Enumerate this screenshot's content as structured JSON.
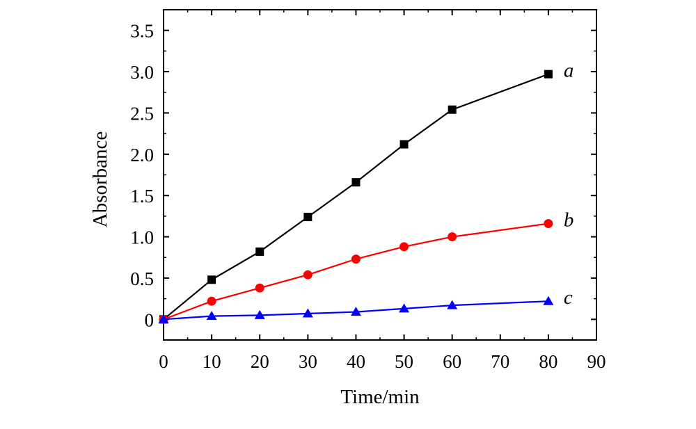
{
  "chart_data": {
    "type": "line",
    "title": "",
    "xlabel": "Time/min",
    "ylabel": "Absorbance",
    "xlim": [
      0,
      90
    ],
    "ylim": [
      -0.25,
      3.75
    ],
    "xticks": [
      0,
      10,
      20,
      30,
      40,
      50,
      60,
      70,
      80,
      90
    ],
    "xtick_labels": [
      "0",
      "10",
      "20",
      "30",
      "40",
      "50",
      "60",
      "70",
      "80",
      "90"
    ],
    "yticks": [
      0,
      0.5,
      1.0,
      1.5,
      2.0,
      2.5,
      3.0,
      3.5
    ],
    "ytick_labels": [
      "0",
      "0.5",
      "1.0",
      "1.5",
      "2.0",
      "2.5",
      "3.0",
      "3.5"
    ],
    "grid": false,
    "legend": "inline labels at line ends",
    "series": [
      {
        "name": "a",
        "color": "#000000",
        "marker": "square",
        "x": [
          0,
          10,
          20,
          30,
          40,
          50,
          60,
          80
        ],
        "values": [
          0.0,
          0.48,
          0.82,
          1.24,
          1.66,
          2.12,
          2.54,
          2.97
        ]
      },
      {
        "name": "b",
        "color": "#ff0000",
        "marker": "circle",
        "x": [
          0,
          10,
          20,
          30,
          40,
          50,
          60,
          80
        ],
        "values": [
          0.0,
          0.22,
          0.38,
          0.54,
          0.73,
          0.88,
          1.0,
          1.16
        ]
      },
      {
        "name": "c",
        "color": "#0000ff",
        "marker": "triangle",
        "x": [
          0,
          10,
          20,
          30,
          40,
          50,
          60,
          80
        ],
        "values": [
          0.0,
          0.04,
          0.05,
          0.07,
          0.09,
          0.13,
          0.17,
          0.22
        ]
      }
    ]
  }
}
